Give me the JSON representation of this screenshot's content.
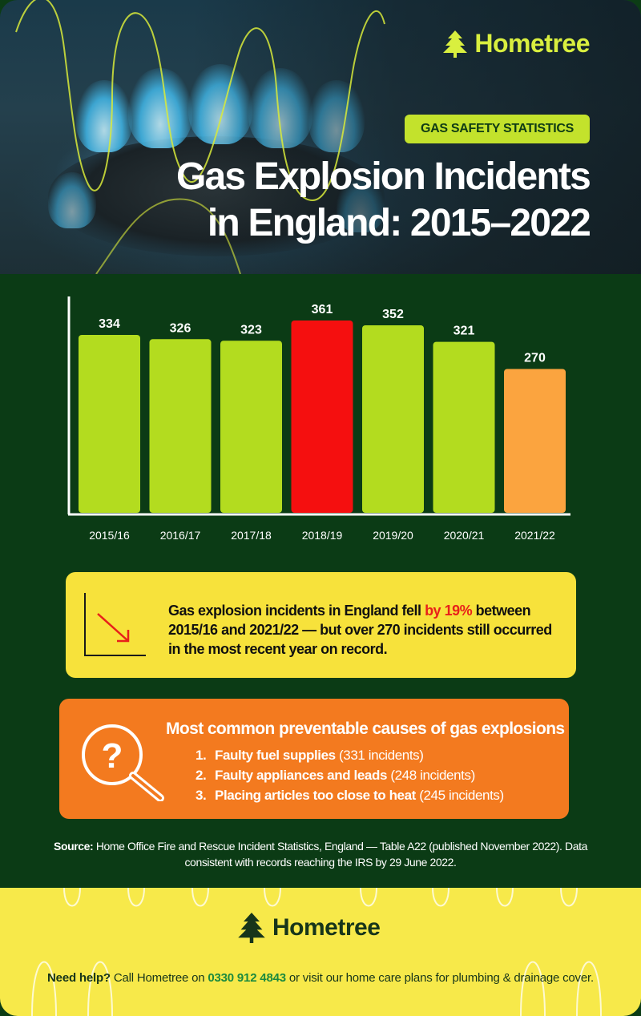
{
  "brand": {
    "name": "Hometree"
  },
  "header": {
    "tag": "GAS SAFETY STATISTICS",
    "title_line1": "Gas Explosion Incidents",
    "title_line2": "in England: 2015–2022"
  },
  "colors": {
    "green_bar": "#b3dc1f",
    "peak_bar": "#f50f0f",
    "latest_bar": "#fba43f",
    "background": "#0b3b15",
    "axis": "#ffffff"
  },
  "chart_data": {
    "type": "bar",
    "categories": [
      "2015/16",
      "2016/17",
      "2017/18",
      "2018/19",
      "2019/20",
      "2020/21",
      "2021/22"
    ],
    "values": [
      334,
      326,
      323,
      361,
      352,
      321,
      270
    ],
    "data_labels": [
      "334",
      "326",
      "323",
      "361",
      "352",
      "321",
      "270"
    ],
    "bar_colors": [
      "#b3dc1f",
      "#b3dc1f",
      "#b3dc1f",
      "#f50f0f",
      "#b3dc1f",
      "#b3dc1f",
      "#fba43f"
    ],
    "ylim": [
      0,
      361
    ],
    "title": "",
    "xlabel": "",
    "ylabel": "",
    "grid": false,
    "legend": "none"
  },
  "summary": {
    "before": "Gas explosion incidents in England fell ",
    "highlight": "by 19%",
    "after": " between 2015/16 and 2021/22 — but over 270 incidents still occurred in the most recent year on record."
  },
  "causes": {
    "heading": "Most common preventable causes of gas explosions",
    "items": [
      {
        "num": "1.",
        "cause": "Faulty fuel supplies",
        "count": " (331 incidents)"
      },
      {
        "num": "2.",
        "cause": "Faulty appliances and leads",
        "count": " (248 incidents)"
      },
      {
        "num": "3.",
        "cause": "Placing articles too close to heat",
        "count": " (245 incidents)"
      }
    ]
  },
  "source": {
    "label": "Source:",
    "text": " Home Office Fire and Rescue Incident Statistics, England — Table A22 (published November 2022). Data consistent with records reaching the IRS by 29 June 2022."
  },
  "footer": {
    "help_label": "Need help?",
    "help_before": " Call Hometree on ",
    "phone": "0330 912 4843",
    "help_after": " or visit our home care plans for plumbing & drainage cover."
  },
  "icons": {
    "logo": "tree-icon",
    "trend": "trend-down-icon",
    "question": "magnifier-question-icon"
  }
}
